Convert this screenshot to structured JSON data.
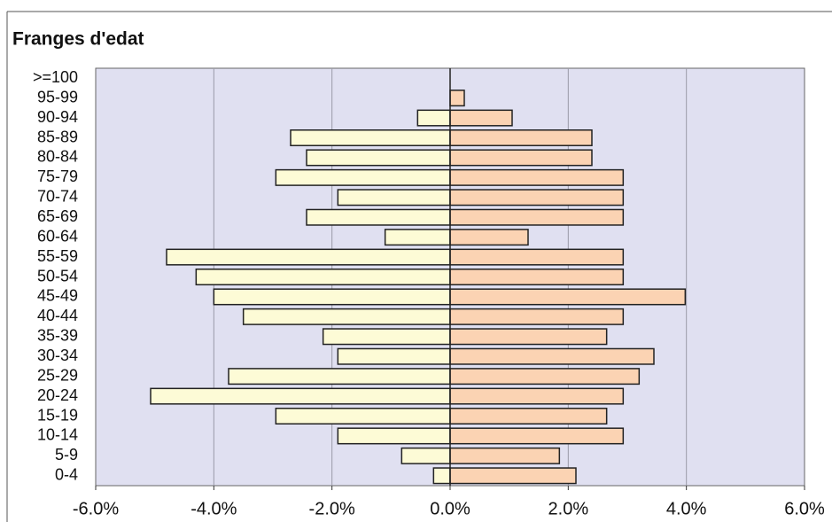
{
  "chart_data": {
    "type": "pyramid",
    "title": "Franges d'edat",
    "categories": [
      ">=100",
      "95-99",
      "90-94",
      "85-89",
      "80-84",
      "75-79",
      "70-74",
      "65-69",
      "60-64",
      "55-59",
      "50-54",
      "45-49",
      "40-44",
      "35-39",
      "30-34",
      "25-29",
      "20-24",
      "15-19",
      "10-14",
      "5-9",
      "0-4"
    ],
    "series": [
      {
        "color": "#fdfbd6",
        "values": [
          0,
          0,
          -0.55,
          -2.7,
          -2.43,
          -2.95,
          -1.9,
          -2.43,
          -1.1,
          -4.8,
          -4.3,
          -4.0,
          -3.5,
          -2.15,
          -1.9,
          -3.75,
          -5.07,
          -2.95,
          -1.9,
          -0.82,
          -0.28
        ]
      },
      {
        "color": "#fbd3b3",
        "values": [
          0,
          0.24,
          1.05,
          2.4,
          2.4,
          2.93,
          2.93,
          2.93,
          1.32,
          2.93,
          2.93,
          3.98,
          2.93,
          2.65,
          3.45,
          3.2,
          2.93,
          2.65,
          2.93,
          1.85,
          2.13
        ]
      }
    ],
    "xlim": [
      -6,
      6
    ],
    "xticks": [
      {
        "value": -6,
        "label": "-6.0%"
      },
      {
        "value": -4,
        "label": "-4.0%"
      },
      {
        "value": -2,
        "label": "-2.0%"
      },
      {
        "value": 0,
        "label": "0.0%"
      },
      {
        "value": 2,
        "label": "2.0%"
      },
      {
        "value": 4,
        "label": "4.0%"
      },
      {
        "value": 6,
        "label": "6.0%"
      }
    ],
    "grid": true,
    "background": "#e0e0f1"
  }
}
